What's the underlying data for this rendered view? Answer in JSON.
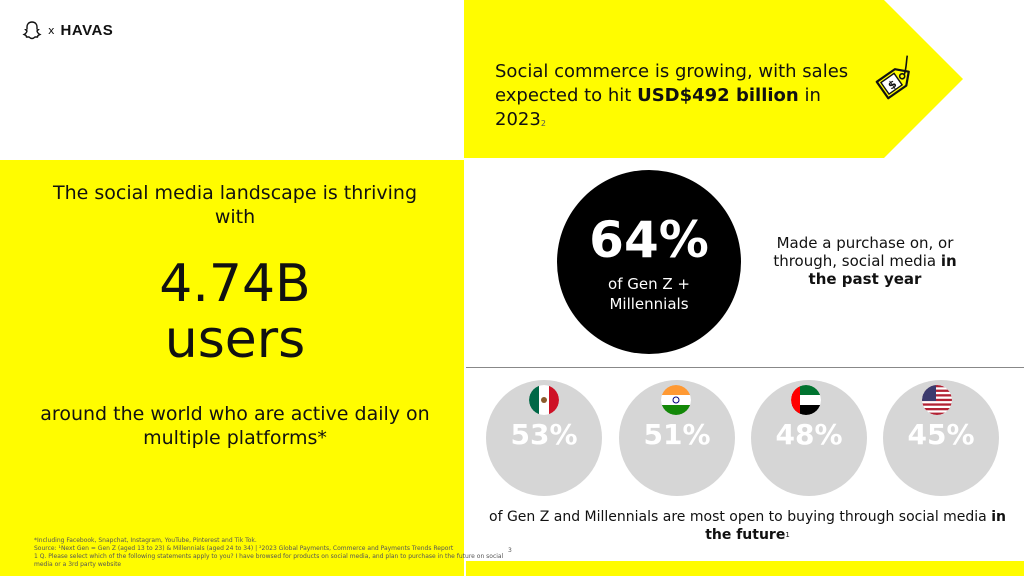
{
  "logo": {
    "x": "x",
    "havas": "HAVAS"
  },
  "banner": {
    "line_pre": "Social commerce is growing, with sales expected to hit ",
    "amount": "USD$492 billion",
    "line_post": " in 2023",
    "ref": "2",
    "color": "#FFFC00"
  },
  "left": {
    "intro": "The social media landscape is thriving with",
    "big_line1": "4.74B",
    "big_line2": "users",
    "outro": "around the world who are active daily on multiple platforms*",
    "color": "#FFFC00"
  },
  "stat": {
    "pct": "64%",
    "sub": "of Gen Z + Millennials",
    "desc_pre": "Made a purchase on, or through, social media ",
    "desc_bold": "in the past year"
  },
  "countries": [
    {
      "value": "53%",
      "flag": "mexico-flag-icon"
    },
    {
      "value": "51%",
      "flag": "india-flag-icon"
    },
    {
      "value": "48%",
      "flag": "uae-flag-icon"
    },
    {
      "value": "45%",
      "flag": "usa-flag-icon"
    }
  ],
  "caption": {
    "pre": "of Gen Z and Millennials are most open to buying through social media ",
    "bold": "in the future",
    "ref": "1"
  },
  "footnotes": {
    "line1": "*Including Facebook, Snapchat, Instagram, YouTube, Pinterest and Tik Tok.",
    "line2": "Source: ¹Next Gen = Gen Z (aged 13 to 23) & Millennials (aged 24 to 34) | ²2023 Global Payments, Commerce and Payments Trends Report",
    "line3": "1 Q. Please select which of the following statements apply to you? I have browsed for products on social media, and plan to purchase in the future on social media or a 3rd party website",
    "page": "3"
  }
}
